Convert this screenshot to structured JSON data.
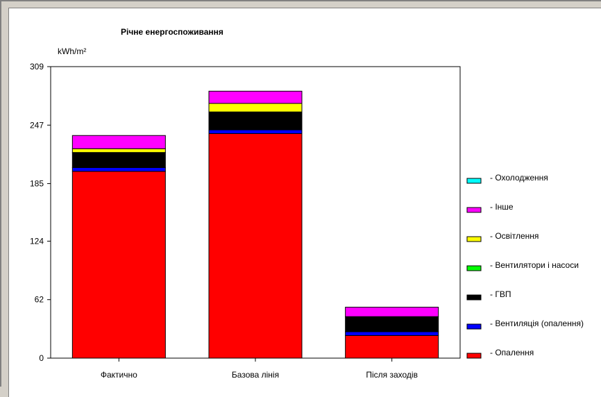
{
  "chart_data": {
    "type": "bar",
    "stacked": true,
    "title": "Річне енергоспоживання",
    "ylabel": "kWh/m²",
    "xlabel": "",
    "ylim": [
      0,
      309
    ],
    "yticks": [
      0,
      62,
      124,
      185,
      247,
      309
    ],
    "grid": false,
    "legend_position": "right",
    "categories": [
      "Фактично",
      "Базова лінія",
      "Після заходів"
    ],
    "series": [
      {
        "name": "- Опалення",
        "color": "#ff0000",
        "values": [
          198,
          238,
          24
        ]
      },
      {
        "name": "- Вентиляція (опалення)",
        "color": "#0000ff",
        "values": [
          4,
          4,
          4
        ]
      },
      {
        "name": "- ГВП",
        "color": "#000000",
        "values": [
          16,
          19,
          16
        ]
      },
      {
        "name": "- Вентилятори  і насоси",
        "color": "#00ff00",
        "values": [
          0,
          0,
          0
        ]
      },
      {
        "name": "- Освітлення",
        "color": "#ffff00",
        "values": [
          4,
          9,
          0
        ]
      },
      {
        "name": "- Інше",
        "color": "#ff00ff",
        "values": [
          14,
          13,
          10
        ]
      },
      {
        "name": "- Охолодження",
        "color": "#00ffff",
        "values": [
          0,
          0,
          0
        ]
      }
    ]
  }
}
